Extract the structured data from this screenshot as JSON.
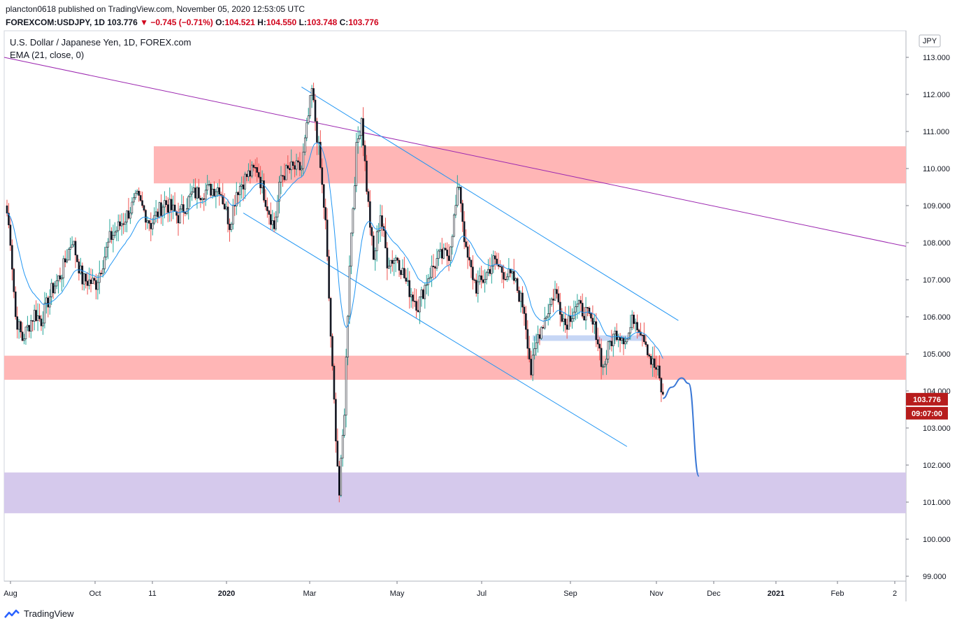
{
  "header": {
    "author": "plancton0618",
    "published_on": "published on TradingView.com, November 05, 2020 12:53:05 UTC",
    "symbol_line": "FOREXCOM:USDJPY, 1D",
    "last": "103.776",
    "change": "−0.745 (−0.71%)",
    "open_label": "O:",
    "open": "104.521",
    "high_label": "H:",
    "high": "104.550",
    "low_label": "L:",
    "low": "103.748",
    "close_label": "C:",
    "close": "103.776",
    "down_arrow": "▼"
  },
  "legend": {
    "title": "U.S. Dollar / Japanese Yen, 1D, FOREX.com",
    "indicator": "EMA (21, close, 0)"
  },
  "footer": {
    "brand": "TradingView"
  },
  "colors": {
    "up": "#ffffff",
    "down": "#131722",
    "wick_up": "#26a69a",
    "wick_down": "#ef5350",
    "ema": "#2196f3",
    "zone_red": "#ffb6b6",
    "zone_purple": "#d5c9ec",
    "trend_purple": "#9c27b0",
    "channel": "#2196f3",
    "projection": "#3a78d6",
    "price_tag": "#b71c1c"
  },
  "chart_data": {
    "type": "candlestick",
    "title": "U.S. Dollar / Japanese Yen, 1D, FOREX.com",
    "currency": "JPY",
    "price_axis": {
      "min": 98.8,
      "max": 113.5,
      "ticks": [
        "113.000",
        "112.000",
        "111.000",
        "110.000",
        "109.000",
        "108.000",
        "107.000",
        "106.000",
        "105.000",
        "104.000",
        "103.000",
        "102.000",
        "101.000",
        "100.000",
        "99.000"
      ]
    },
    "time_axis": {
      "labels": [
        "Aug",
        "Oct",
        "11",
        "2020",
        "Mar",
        "May",
        "Jul",
        "Sep",
        "Nov",
        "Dec",
        "2021",
        "Feb",
        "2"
      ]
    },
    "last_price_tag": "103.776",
    "countdown_tag": "09:07:00",
    "price_path_waypoints": [
      [
        0,
        108.8
      ],
      [
        2,
        108.1
      ],
      [
        5,
        106.0
      ],
      [
        9,
        105.4
      ],
      [
        12,
        105.7
      ],
      [
        16,
        106.1
      ],
      [
        20,
        105.9
      ],
      [
        26,
        106.7
      ],
      [
        32,
        107.2
      ],
      [
        38,
        108.1
      ],
      [
        44,
        107.0
      ],
      [
        52,
        106.9
      ],
      [
        60,
        108.1
      ],
      [
        68,
        108.6
      ],
      [
        76,
        109.2
      ],
      [
        84,
        108.5
      ],
      [
        92,
        109.1
      ],
      [
        100,
        108.7
      ],
      [
        108,
        109.3
      ],
      [
        116,
        109.4
      ],
      [
        124,
        109.5
      ],
      [
        130,
        108.5
      ],
      [
        134,
        109.4
      ],
      [
        140,
        109.8
      ],
      [
        146,
        110.0
      ],
      [
        152,
        109.0
      ],
      [
        156,
        108.4
      ],
      [
        160,
        109.8
      ],
      [
        166,
        110.0
      ],
      [
        172,
        110.0
      ],
      [
        178,
        112.1
      ],
      [
        182,
        110.5
      ],
      [
        186,
        108.5
      ],
      [
        190,
        104.5
      ],
      [
        194,
        101.2
      ],
      [
        197,
        103.5
      ],
      [
        200,
        107.5
      ],
      [
        204,
        110.5
      ],
      [
        207,
        111.4
      ],
      [
        210,
        109.5
      ],
      [
        214,
        107.5
      ],
      [
        218,
        108.8
      ],
      [
        222,
        107.5
      ],
      [
        228,
        107.6
      ],
      [
        234,
        106.8
      ],
      [
        240,
        106.3
      ],
      [
        246,
        107.1
      ],
      [
        252,
        107.6
      ],
      [
        258,
        107.7
      ],
      [
        264,
        109.6
      ],
      [
        268,
        107.7
      ],
      [
        274,
        106.8
      ],
      [
        278,
        107.0
      ],
      [
        284,
        107.5
      ],
      [
        290,
        107.2
      ],
      [
        296,
        107.0
      ],
      [
        302,
        106.2
      ],
      [
        306,
        104.5
      ],
      [
        310,
        105.5
      ],
      [
        316,
        106.2
      ],
      [
        320,
        106.7
      ],
      [
        326,
        105.8
      ],
      [
        332,
        106.3
      ],
      [
        338,
        106.1
      ],
      [
        344,
        105.6
      ],
      [
        348,
        104.6
      ],
      [
        352,
        105.3
      ],
      [
        356,
        105.6
      ],
      [
        362,
        105.4
      ],
      [
        366,
        106.0
      ],
      [
        372,
        105.5
      ],
      [
        376,
        104.8
      ],
      [
        380,
        104.5
      ],
      [
        383,
        103.8
      ]
    ],
    "ema_period": 21,
    "zones": [
      {
        "name": "resistance-zone",
        "from": 109.6,
        "to": 110.6,
        "color": "red"
      },
      {
        "name": "support-zone",
        "from": 104.3,
        "to": 104.95,
        "color": "red"
      },
      {
        "name": "target-zone",
        "from": 100.7,
        "to": 101.8,
        "color": "purple"
      },
      {
        "name": "mini-zone",
        "from": 105.35,
        "to": 105.5,
        "color": "blue"
      }
    ],
    "trendlines": [
      {
        "name": "long-downtrend",
        "from": [
          0,
          113.0
        ],
        "to": [
          520,
          107.9
        ]
      },
      {
        "name": "channel-upper",
        "from": [
          172,
          112.2
        ],
        "to": [
          392,
          105.9
        ]
      },
      {
        "name": "channel-lower",
        "from": [
          138,
          108.8
        ],
        "to": [
          362,
          102.5
        ]
      }
    ],
    "projection": [
      [
        383,
        103.8
      ],
      [
        388,
        104.1
      ],
      [
        394,
        104.35
      ],
      [
        398,
        104.2
      ],
      [
        404,
        101.7
      ]
    ]
  }
}
